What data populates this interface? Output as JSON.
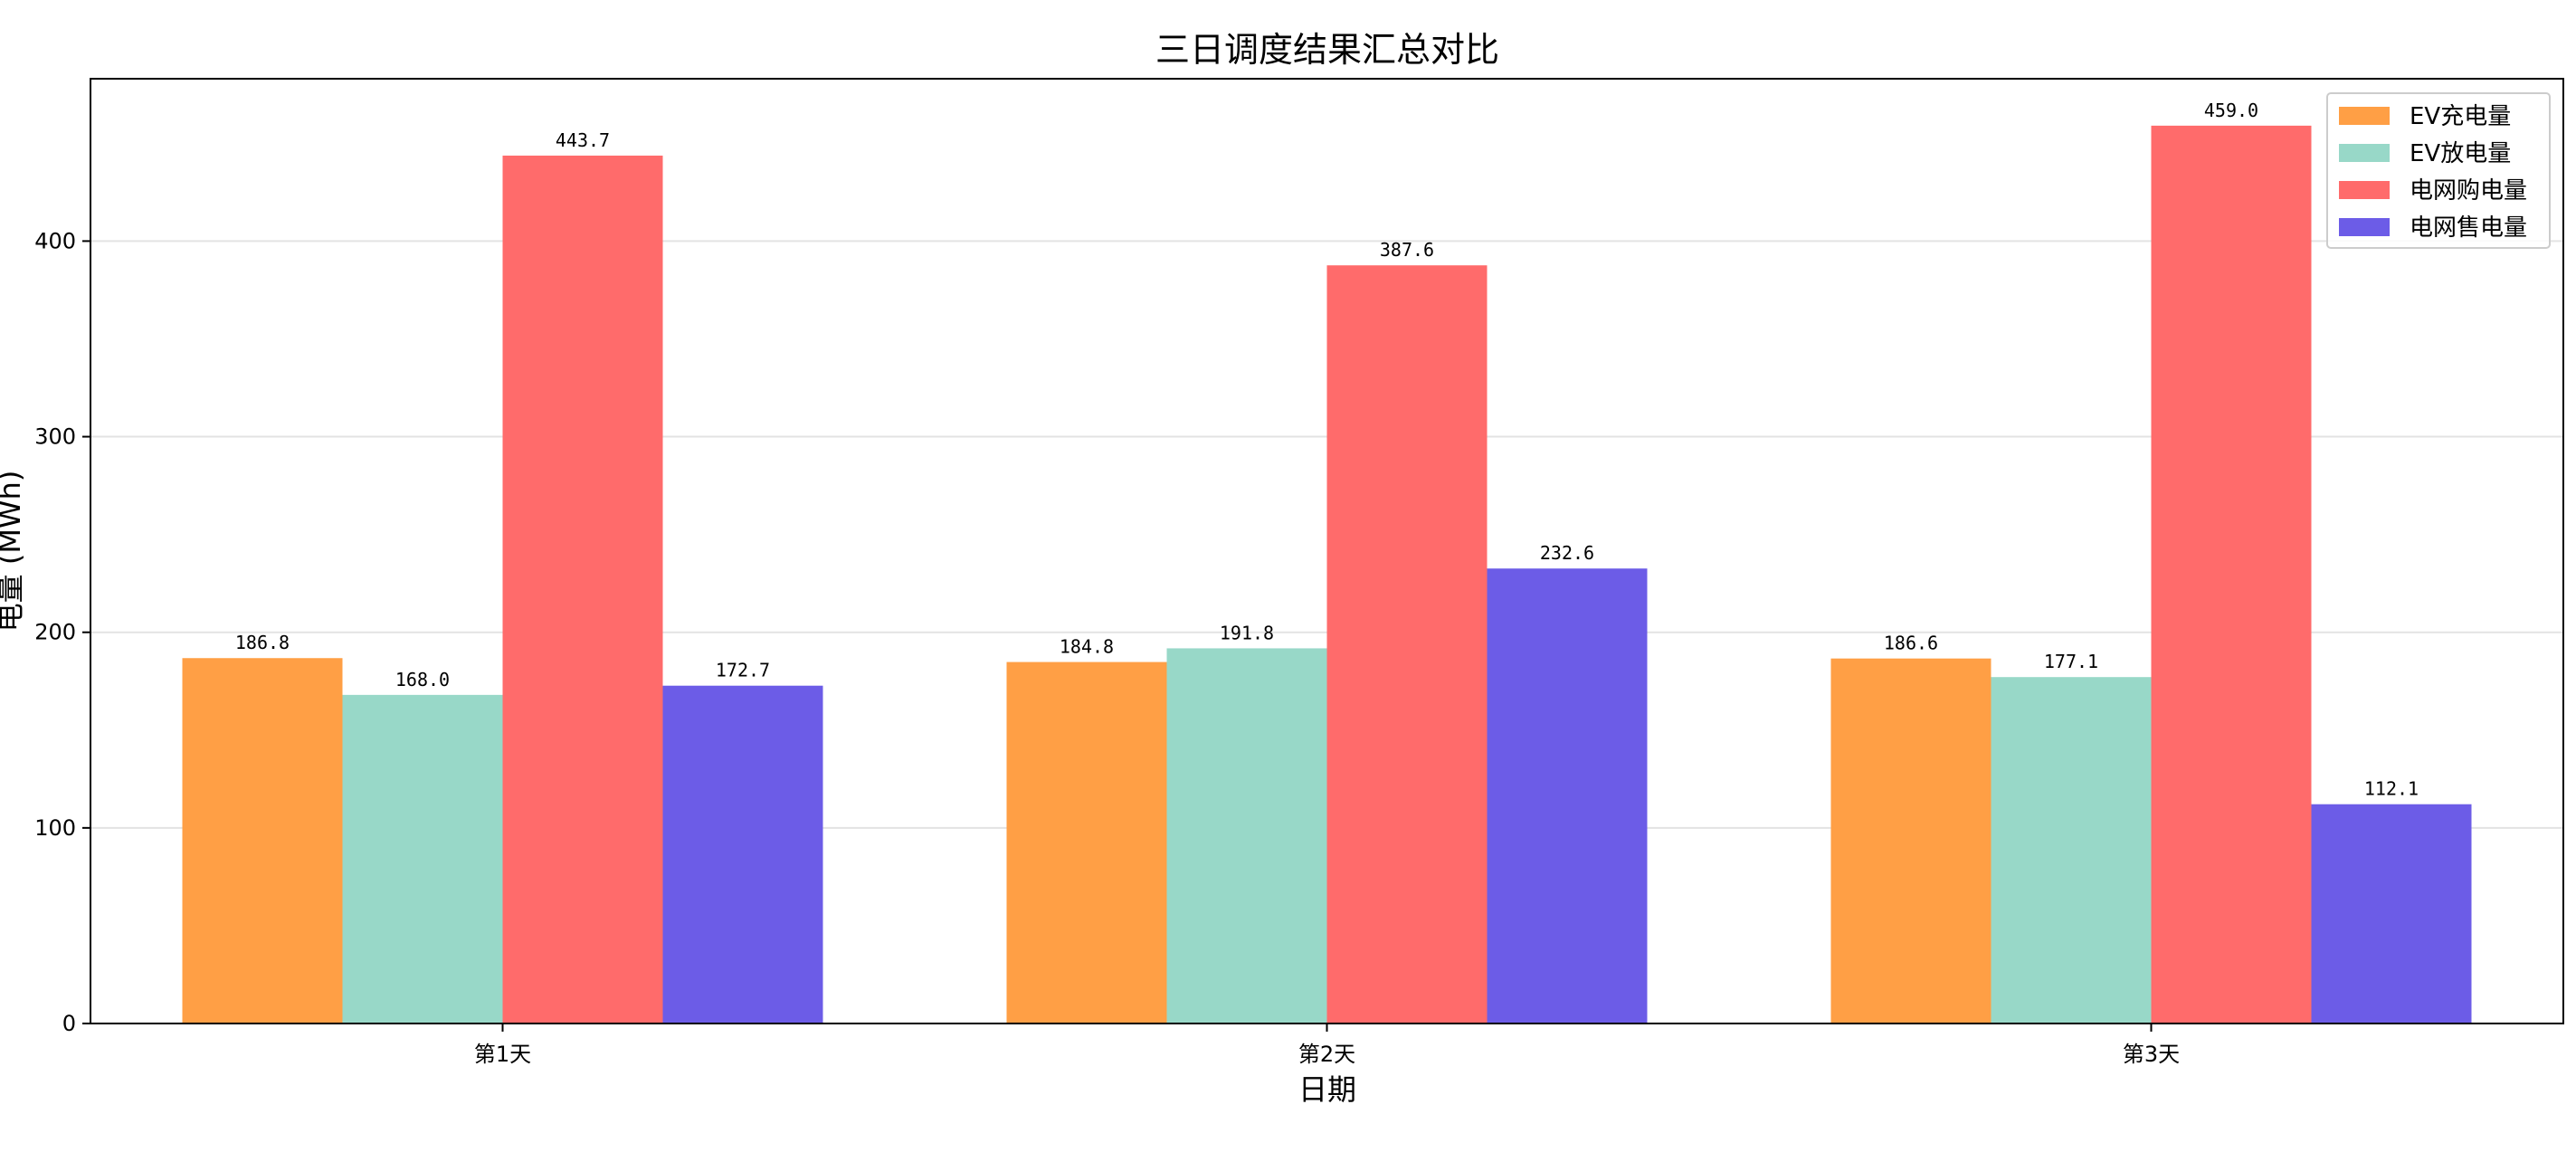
{
  "chart_data": {
    "type": "bar",
    "title": "三日调度结果汇总对比",
    "xlabel": "日期",
    "ylabel": "电量 (MWh)",
    "categories": [
      "第1天",
      "第2天",
      "第3天"
    ],
    "ylim": [
      0,
      483
    ],
    "yticks": [
      0,
      100,
      200,
      300,
      400
    ],
    "grid": "horizontal",
    "legend_position": "top-right",
    "series": [
      {
        "name": "EV充电量",
        "values": [
          186.8,
          184.8,
          186.6
        ],
        "color": "#FF9F45"
      },
      {
        "name": "EV放电量",
        "values": [
          168.0,
          191.8,
          177.1
        ],
        "color": "#98D8C8"
      },
      {
        "name": "电网购电量",
        "values": [
          443.7,
          387.6,
          459.0
        ],
        "color": "#FF6B6B"
      },
      {
        "name": "电网售电量",
        "values": [
          172.7,
          232.6,
          112.1
        ],
        "color": "#6C5CE7"
      }
    ]
  }
}
